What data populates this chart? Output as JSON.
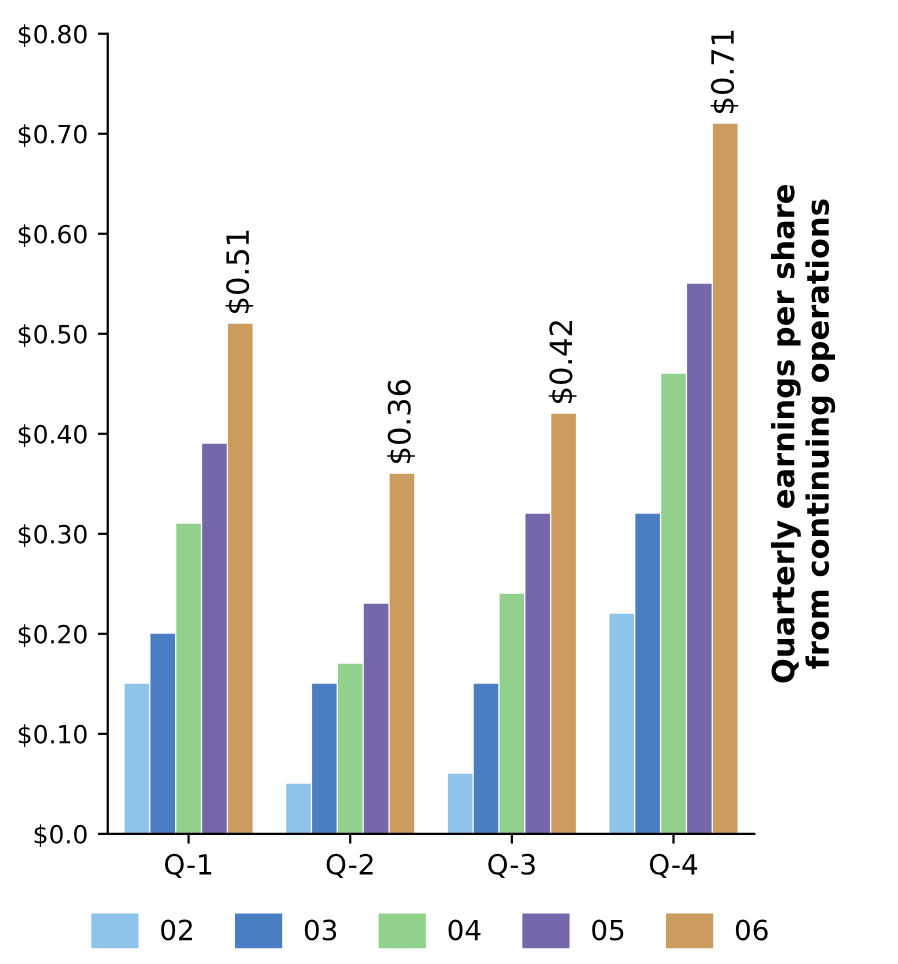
{
  "chart_data": {
    "type": "bar",
    "ylabel": "Quarterly earnings per share\nfrom continuing operations",
    "categories": [
      "Q-1",
      "Q-2",
      "Q-3",
      "Q-4"
    ],
    "series": [
      {
        "name": "02",
        "color": "#8fc4ea",
        "values": [
          0.15,
          0.05,
          0.06,
          0.22
        ]
      },
      {
        "name": "03",
        "color": "#4b7ec1",
        "values": [
          0.2,
          0.15,
          0.15,
          0.32
        ]
      },
      {
        "name": "04",
        "color": "#92d18d",
        "values": [
          0.31,
          0.17,
          0.24,
          0.46
        ]
      },
      {
        "name": "05",
        "color": "#7567aa",
        "values": [
          0.39,
          0.23,
          0.32,
          0.55
        ]
      },
      {
        "name": "06",
        "color": "#cc9b5e",
        "values": [
          0.51,
          0.36,
          0.42,
          0.71
        ],
        "value_labels": [
          "$0.51",
          "$0.36",
          "$0.42",
          "$0.71"
        ]
      }
    ],
    "ylim": [
      0,
      0.8
    ],
    "yticks": [
      {
        "value": 0,
        "label": "$0.0"
      },
      {
        "value": 0.1,
        "label": "$0.10"
      },
      {
        "value": 0.2,
        "label": "$0.20"
      },
      {
        "value": 0.3,
        "label": "$0.30"
      },
      {
        "value": 0.4,
        "label": "$0.40"
      },
      {
        "value": 0.5,
        "label": "$0.50"
      },
      {
        "value": 0.6,
        "label": "$0.60"
      },
      {
        "value": 0.7,
        "label": "$0.70"
      },
      {
        "value": 0.8,
        "label": "$0.80"
      }
    ],
    "grid": false,
    "legend": "bottom"
  }
}
